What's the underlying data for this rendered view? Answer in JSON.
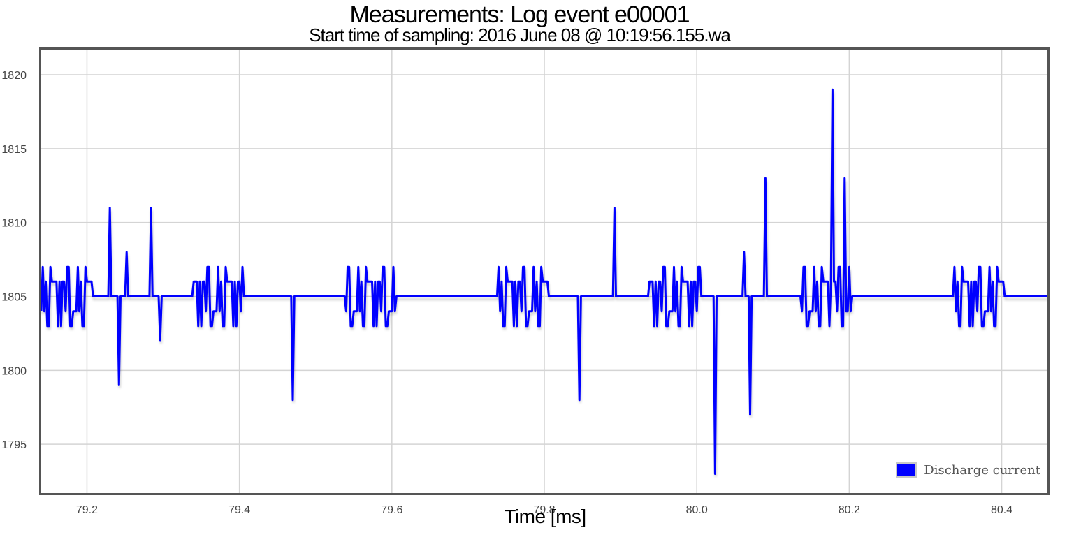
{
  "chart_data": {
    "type": "line",
    "title": "Measurements: Log event e00001",
    "subtitle": "Start time of sampling: 2016 June 08 @ 10:19:56.155.wa",
    "xlabel": "Time [ms]",
    "ylabel": "",
    "xlim": [
      79.14,
      80.46
    ],
    "ylim": [
      1791.7,
      1821.7
    ],
    "x_ticks": [
      79.2,
      79.4,
      79.6,
      79.8,
      80.0,
      80.2,
      80.4
    ],
    "x_tick_labels": [
      "79.2",
      "79.4",
      "79.6",
      "79.8",
      "80.0",
      "80.2",
      "80.4"
    ],
    "y_ticks": [
      1795,
      1800,
      1805,
      1810,
      1815,
      1820
    ],
    "y_tick_labels": [
      "1795",
      "1800",
      "1805",
      "1810",
      "1815",
      "1820"
    ],
    "grid": true,
    "legend_position": "bottom-right",
    "baseline": 1805,
    "sample_step": 0.002,
    "series": [
      {
        "name": "Discharge current",
        "color": "#0000ff",
        "baseline_noise": [
          1804,
          1806,
          1803,
          1806,
          1807,
          1803,
          1806,
          1807,
          1803,
          1804,
          1806,
          1807,
          1803,
          1806,
          1804,
          1806,
          1804,
          1806,
          1803,
          1807,
          1804,
          1806,
          1803
        ],
        "spikes": [
          {
            "x": 79.231,
            "y": 1811
          },
          {
            "x": 79.243,
            "y": 1799
          },
          {
            "x": 79.252,
            "y": 1808
          },
          {
            "x": 79.284,
            "y": 1811
          },
          {
            "x": 79.297,
            "y": 1802
          },
          {
            "x": 79.47,
            "y": 1798
          },
          {
            "x": 79.847,
            "y": 1798
          },
          {
            "x": 79.891,
            "y": 1811
          },
          {
            "x": 80.024,
            "y": 1793
          },
          {
            "x": 80.062,
            "y": 1808
          },
          {
            "x": 80.071,
            "y": 1797
          },
          {
            "x": 80.091,
            "y": 1813
          },
          {
            "x": 80.177,
            "y": 1819
          },
          {
            "x": 80.195,
            "y": 1813
          }
        ]
      }
    ]
  },
  "legend": {
    "label": "Discharge current"
  }
}
